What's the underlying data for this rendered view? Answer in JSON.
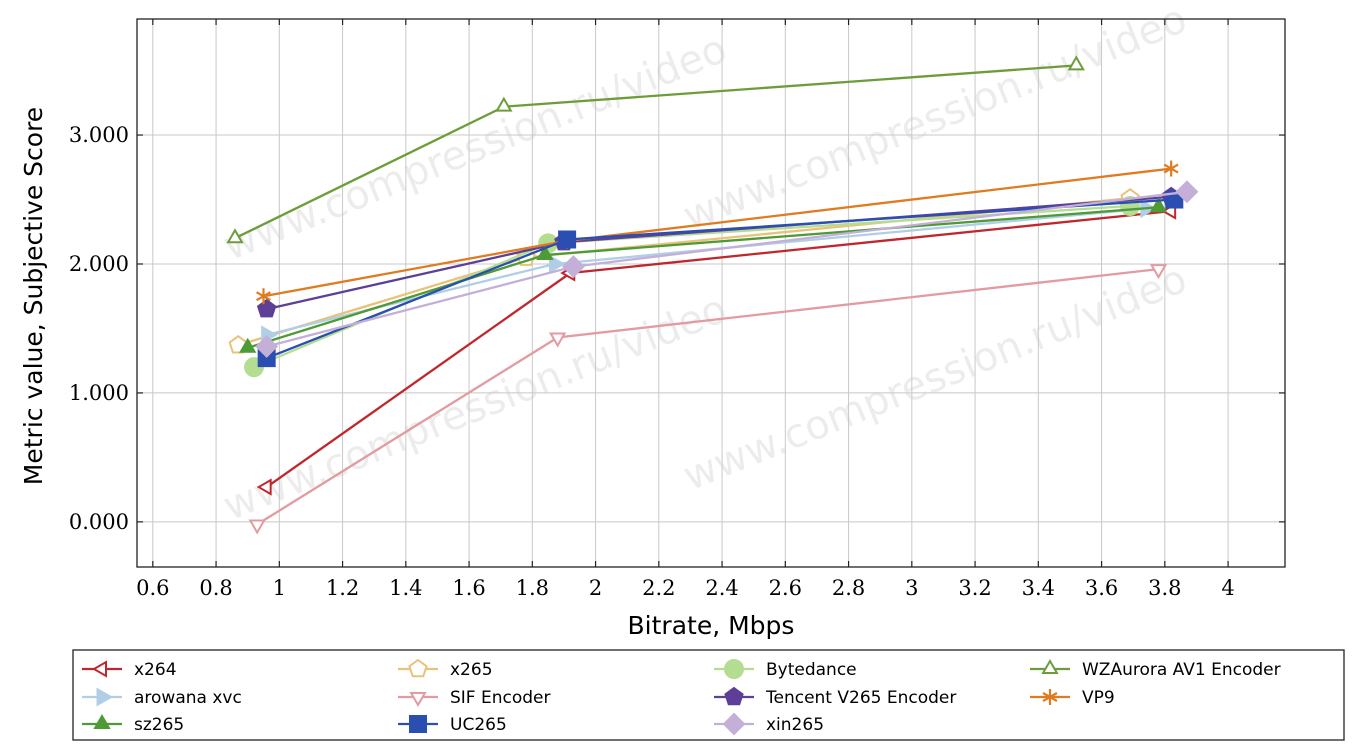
{
  "chart_data": {
    "type": "line",
    "xlabel": "Bitrate, Mbps",
    "ylabel": "Metric value, Subjective Score",
    "xlim": [
      0.55,
      4.18
    ],
    "ylim": [
      -0.35,
      3.9
    ],
    "x_ticks": [
      "0.6",
      "0.8",
      "1",
      "1.2",
      "1.4",
      "1.6",
      "1.8",
      "2",
      "2.2",
      "2.4",
      "2.6",
      "2.8",
      "3",
      "3.2",
      "3.4",
      "3.6",
      "3.8",
      "4"
    ],
    "y_ticks": [
      "0.000",
      "1.000",
      "2.000",
      "3.000"
    ],
    "grid": true,
    "legend_placement": "bottom",
    "watermark": "www.compression.ru/video",
    "series": [
      {
        "name": "x264",
        "color": "#c0272d",
        "marker": "triangle-left-open",
        "points": [
          [
            0.96,
            0.27
          ],
          [
            1.92,
            1.93
          ],
          [
            3.82,
            2.41
          ]
        ]
      },
      {
        "name": "x265",
        "color": "#e9c27a",
        "marker": "pentagon-open",
        "points": [
          [
            0.87,
            1.37
          ],
          [
            1.78,
            2.05
          ],
          [
            3.69,
            2.51
          ]
        ]
      },
      {
        "name": "Bytedance",
        "color": "#b5dd92",
        "marker": "circle-filled",
        "points": [
          [
            0.92,
            1.2
          ],
          [
            1.85,
            2.16
          ],
          [
            3.69,
            2.45
          ]
        ]
      },
      {
        "name": "WZAurora AV1 Encoder",
        "color": "#6d9d3a",
        "marker": "triangle-up-open",
        "points": [
          [
            0.86,
            2.2
          ],
          [
            1.71,
            3.22
          ],
          [
            3.52,
            3.54
          ]
        ]
      },
      {
        "name": "arowana xvc",
        "color": "#b0cfe6",
        "marker": "triangle-right-filled",
        "points": [
          [
            0.96,
            1.45
          ],
          [
            1.87,
            2.0
          ],
          [
            3.74,
            2.43
          ]
        ]
      },
      {
        "name": "SIF Encoder",
        "color": "#e39aa0",
        "marker": "triangle-down-open",
        "points": [
          [
            0.93,
            -0.02
          ],
          [
            1.88,
            1.43
          ],
          [
            3.78,
            1.96
          ]
        ]
      },
      {
        "name": "Tencent V265 Encoder",
        "color": "#5e3f98",
        "marker": "pentagon-filled",
        "points": [
          [
            0.96,
            1.65
          ],
          [
            1.9,
            2.17
          ],
          [
            3.82,
            2.52
          ]
        ]
      },
      {
        "name": "VP9",
        "color": "#e07b20",
        "marker": "asterisk",
        "points": [
          [
            0.95,
            1.75
          ],
          [
            1.91,
            2.18
          ],
          [
            3.82,
            2.74
          ]
        ]
      },
      {
        "name": "sz265",
        "color": "#4e9a36",
        "marker": "triangle-up-filled",
        "points": [
          [
            0.9,
            1.35
          ],
          [
            1.84,
            2.07
          ],
          [
            3.78,
            2.44
          ]
        ]
      },
      {
        "name": "UC265",
        "color": "#2a4fb1",
        "marker": "square-filled",
        "points": [
          [
            0.96,
            1.27
          ],
          [
            1.91,
            2.19
          ],
          [
            3.83,
            2.5
          ]
        ]
      },
      {
        "name": "xin265",
        "color": "#c3afd8",
        "marker": "diamond-filled",
        "points": [
          [
            0.96,
            1.36
          ],
          [
            1.93,
            1.98
          ],
          [
            3.87,
            2.56
          ]
        ]
      }
    ]
  }
}
